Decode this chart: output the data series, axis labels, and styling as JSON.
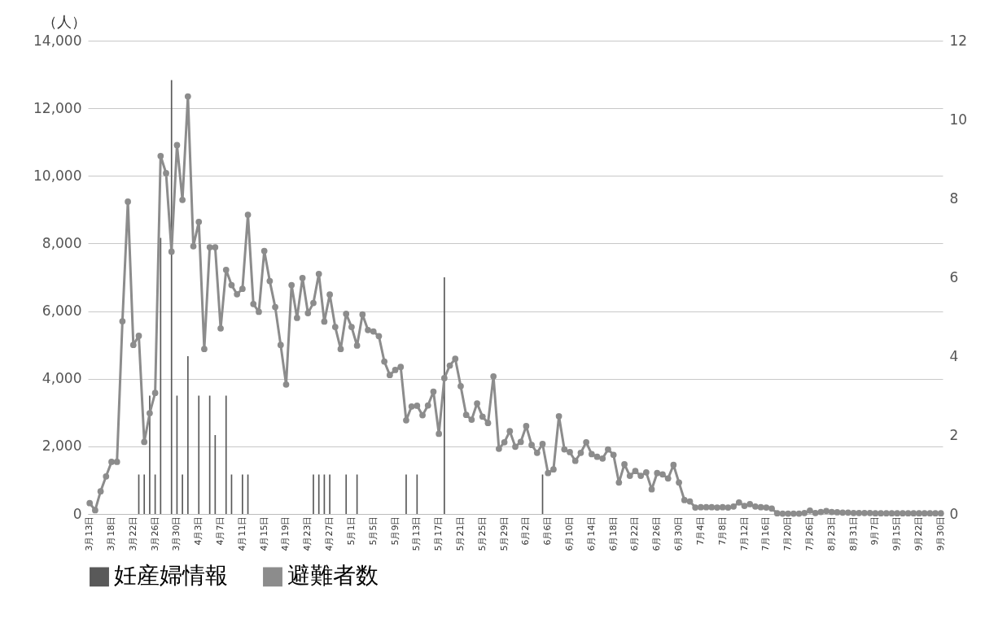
{
  "chart_data": {
    "type": "line",
    "ylabel": "（人）",
    "categories": [
      "3月13日",
      null,
      null,
      null,
      "3月18日",
      null,
      null,
      null,
      "3月22日",
      null,
      null,
      null,
      "3月26日",
      null,
      null,
      null,
      "3月30日",
      null,
      null,
      null,
      "4月3日",
      null,
      null,
      null,
      "4月7日",
      null,
      null,
      null,
      "4月11日",
      null,
      null,
      null,
      "4月15日",
      null,
      null,
      null,
      "4月19日",
      null,
      null,
      null,
      "4月23日",
      null,
      null,
      null,
      "4月27日",
      null,
      null,
      null,
      "5月1日",
      null,
      null,
      null,
      "5月5日",
      null,
      null,
      null,
      "5月9日",
      null,
      null,
      null,
      "5月13日",
      null,
      null,
      null,
      "5月17日",
      null,
      null,
      null,
      "5月21日",
      null,
      null,
      null,
      "5月25日",
      null,
      null,
      null,
      "5月29日",
      null,
      null,
      null,
      "6月2日",
      null,
      null,
      null,
      "6月6日",
      null,
      null,
      null,
      "6月10日",
      null,
      null,
      null,
      "6月14日",
      null,
      null,
      null,
      "6月18日",
      null,
      null,
      null,
      "6月22日",
      null,
      null,
      null,
      "6月26日",
      null,
      null,
      null,
      "6月30日",
      null,
      null,
      null,
      "7月4日",
      null,
      null,
      null,
      "7月8日",
      null,
      null,
      null,
      "7月12日",
      null,
      null,
      null,
      "7月16日",
      null,
      null,
      null,
      "7月20日",
      null,
      null,
      null,
      "7月26日",
      null,
      null,
      null,
      "8月23日",
      null,
      null,
      null,
      "8月31日",
      null,
      null,
      null,
      "9月7日",
      null,
      null,
      null,
      "9月15日",
      null,
      null,
      null,
      "9月22日",
      null,
      null,
      null,
      "9月30日"
    ],
    "series": [
      {
        "type": "bar",
        "name": "妊産婦情報",
        "color": "#595959",
        "axis": "y2",
        "values": [
          null,
          null,
          null,
          null,
          null,
          null,
          null,
          null,
          null,
          1,
          1,
          3,
          1,
          7,
          null,
          11,
          3,
          1,
          4,
          null,
          3,
          null,
          3,
          2,
          null,
          3,
          1,
          null,
          1,
          1,
          null,
          null,
          null,
          null,
          null,
          null,
          null,
          null,
          null,
          null,
          null,
          1,
          1,
          1,
          1,
          null,
          null,
          1,
          null,
          1,
          null,
          null,
          null,
          null,
          null,
          null,
          null,
          null,
          1,
          null,
          1,
          null,
          null,
          null,
          null,
          6,
          null,
          null,
          null,
          null,
          null,
          null,
          null,
          null,
          null,
          null,
          null,
          null,
          null,
          null,
          null,
          null,
          null,
          1,
          null,
          null,
          null,
          null,
          null,
          null,
          null,
          null,
          null,
          null,
          null,
          null,
          null,
          null,
          null,
          null,
          null,
          null,
          null,
          null,
          null,
          null,
          null,
          null,
          null,
          null,
          null,
          null,
          null,
          null,
          null,
          null,
          null,
          null,
          null,
          null,
          null,
          null,
          null,
          null,
          null,
          null,
          null,
          null,
          null,
          null,
          null,
          null,
          null,
          null,
          null,
          null,
          null,
          null,
          null,
          null,
          null,
          null,
          null,
          null,
          null,
          null,
          null,
          null,
          null,
          null,
          null,
          null,
          null,
          null,
          null,
          null,
          null
        ]
      },
      {
        "name": "避難者数",
        "color": "#8c8c8c",
        "values": [
          320,
          110,
          670,
          1110,
          1540,
          1540,
          5700,
          9240,
          5000,
          5270,
          2130,
          2980,
          3580,
          10590,
          10080,
          7760,
          10910,
          9290,
          12350,
          7920,
          8640,
          4880,
          7890,
          7890,
          5490,
          7220,
          6770,
          6500,
          6660,
          8850,
          6210,
          5980,
          7780,
          6890,
          6120,
          5000,
          3830,
          6770,
          5800,
          6980,
          5940,
          6240,
          7100,
          5690,
          6490,
          5530,
          4880,
          5920,
          5530,
          4980,
          5900,
          5440,
          5400,
          5260,
          4510,
          4110,
          4260,
          4350,
          2770,
          3180,
          3200,
          2920,
          3210,
          3620,
          2370,
          4020,
          4390,
          4590,
          3780,
          2930,
          2790,
          3270,
          2880,
          2690,
          4070,
          1930,
          2120,
          2450,
          1990,
          2130,
          2600,
          2040,
          1810,
          2070,
          1210,
          1320,
          2890,
          1910,
          1830,
          1570,
          1810,
          2120,
          1770,
          1690,
          1640,
          1910,
          1750,
          930,
          1470,
          1130,
          1270,
          1130,
          1230,
          730,
          1210,
          1170,
          1050,
          1450,
          930,
          410,
          370,
          190,
          200,
          200,
          200,
          190,
          200,
          190,
          220,
          340,
          240,
          290,
          220,
          200,
          190,
          160,
          20,
          10,
          10,
          10,
          10,
          30,
          100,
          30,
          60,
          90,
          60,
          50,
          40,
          40,
          30,
          30,
          30,
          30,
          20,
          20,
          20,
          20,
          20,
          20,
          20,
          20,
          20,
          20,
          20,
          20,
          20
        ]
      }
    ],
    "ylim": [
      0,
      14000
    ],
    "yticks": [
      0,
      {
        "value": 2000,
        "label": "2,000"
      },
      {
        "value": 4000,
        "label": "4,000"
      },
      {
        "value": 6000,
        "label": "6,000"
      },
      {
        "value": 8000,
        "label": "8,000"
      },
      {
        "value": 10000,
        "label": "10,000"
      },
      {
        "value": 12000,
        "label": "12,000"
      },
      {
        "value": 14000,
        "label": "14,000"
      }
    ],
    "y2lim": [
      0,
      12
    ],
    "y2ticks": [
      0,
      2,
      4,
      6,
      8,
      10,
      12
    ],
    "grid": "y",
    "legend": "bottom",
    "marker": "circle"
  }
}
